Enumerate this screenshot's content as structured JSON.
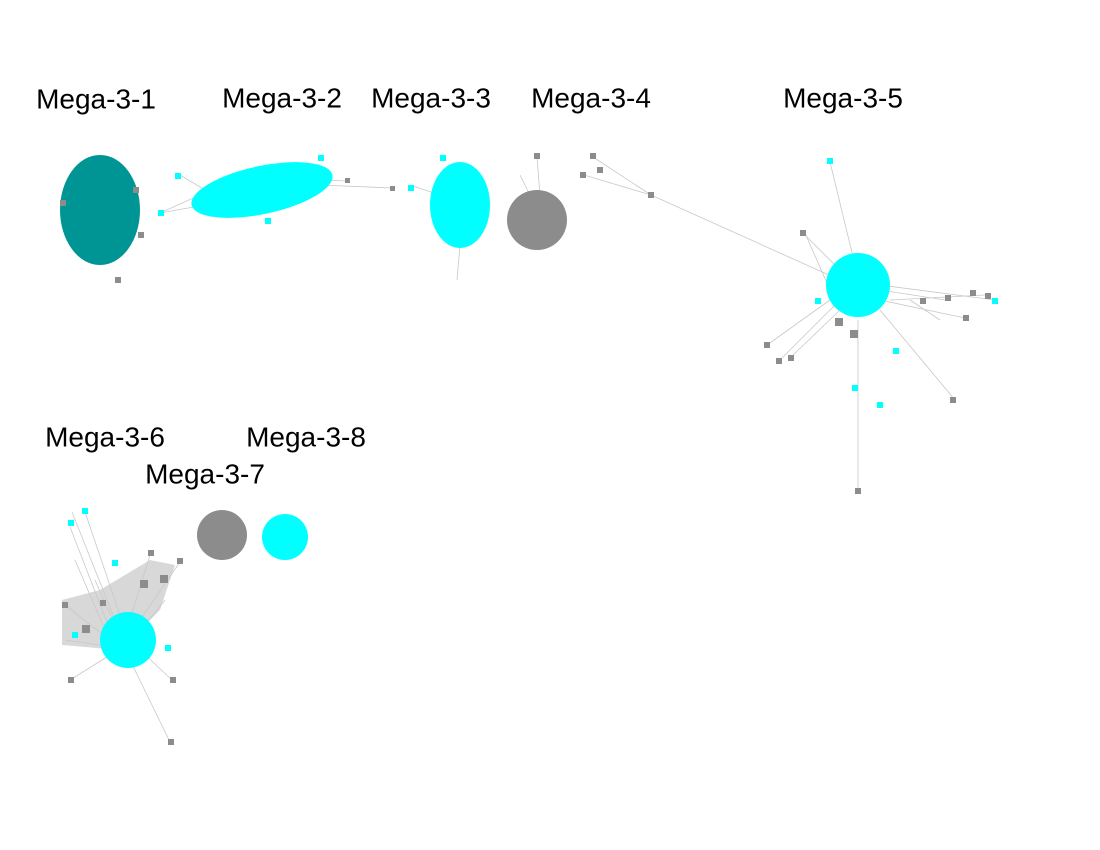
{
  "clusters": [
    {
      "label": "Mega-3-1"
    },
    {
      "label": "Mega-3-2"
    },
    {
      "label": "Mega-3-3"
    },
    {
      "label": "Mega-3-4"
    },
    {
      "label": "Mega-3-5"
    },
    {
      "label": "Mega-3-6"
    },
    {
      "label": "Mega-3-7"
    },
    {
      "label": "Mega-3-8"
    }
  ]
}
